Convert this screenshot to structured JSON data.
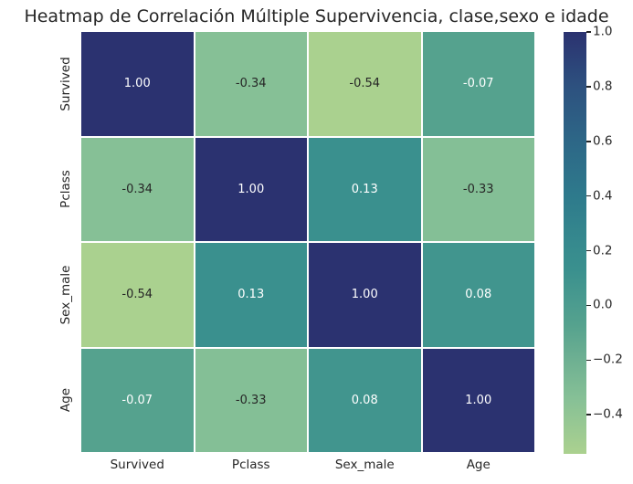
{
  "chart_data": {
    "type": "heatmap",
    "title": "Heatmap de Correlación Múltiple Supervivencia, clase,sexo e idade",
    "x_labels": [
      "Survived",
      "Pclass",
      "Sex_male",
      "Age"
    ],
    "y_labels": [
      "Survived",
      "Pclass",
      "Sex_male",
      "Age"
    ],
    "matrix": [
      [
        1.0,
        -0.34,
        -0.54,
        -0.07
      ],
      [
        -0.34,
        1.0,
        0.13,
        -0.33
      ],
      [
        -0.54,
        0.13,
        1.0,
        0.08
      ],
      [
        -0.07,
        -0.33,
        0.08,
        1.0
      ]
    ],
    "annotations": [
      [
        "1.00",
        "-0.34",
        "-0.54",
        "-0.07"
      ],
      [
        "-0.34",
        "1.00",
        "0.13",
        "-0.33"
      ],
      [
        "-0.54",
        "0.13",
        "1.00",
        "0.08"
      ],
      [
        "-0.07",
        "-0.33",
        "0.08",
        "1.00"
      ]
    ],
    "vmin": -0.543,
    "vmax": 1.0,
    "colormap_stops": [
      {
        "value": -0.543,
        "color": "#abd18f"
      },
      {
        "value": -0.34,
        "color": "#86c096"
      },
      {
        "value": -0.2,
        "color": "#6eb092"
      },
      {
        "value": -0.07,
        "color": "#55a28e"
      },
      {
        "value": 0.0,
        "color": "#4c9c8f"
      },
      {
        "value": 0.13,
        "color": "#3a908e"
      },
      {
        "value": 0.2,
        "color": "#378c8e"
      },
      {
        "value": 0.4,
        "color": "#2e7a8c"
      },
      {
        "value": 0.6,
        "color": "#2d6787"
      },
      {
        "value": 0.8,
        "color": "#2d517f"
      },
      {
        "value": 1.0,
        "color": "#2b3270"
      }
    ],
    "colorbar": {
      "position": "right",
      "tick_labels": [
        "1.0",
        "0.8",
        "0.6",
        "0.4",
        "0.2",
        "0.0",
        "−0.2",
        "−0.4"
      ],
      "tick_values": [
        1.0,
        0.8,
        0.6,
        0.4,
        0.2,
        0.0,
        -0.2,
        -0.4
      ]
    },
    "annotation_text_colors": {
      "light": "#ffffff",
      "dark": "#262626"
    },
    "grid_line_color": "#ffffff",
    "axis_label_color": "#262626",
    "background": "#ffffff"
  }
}
